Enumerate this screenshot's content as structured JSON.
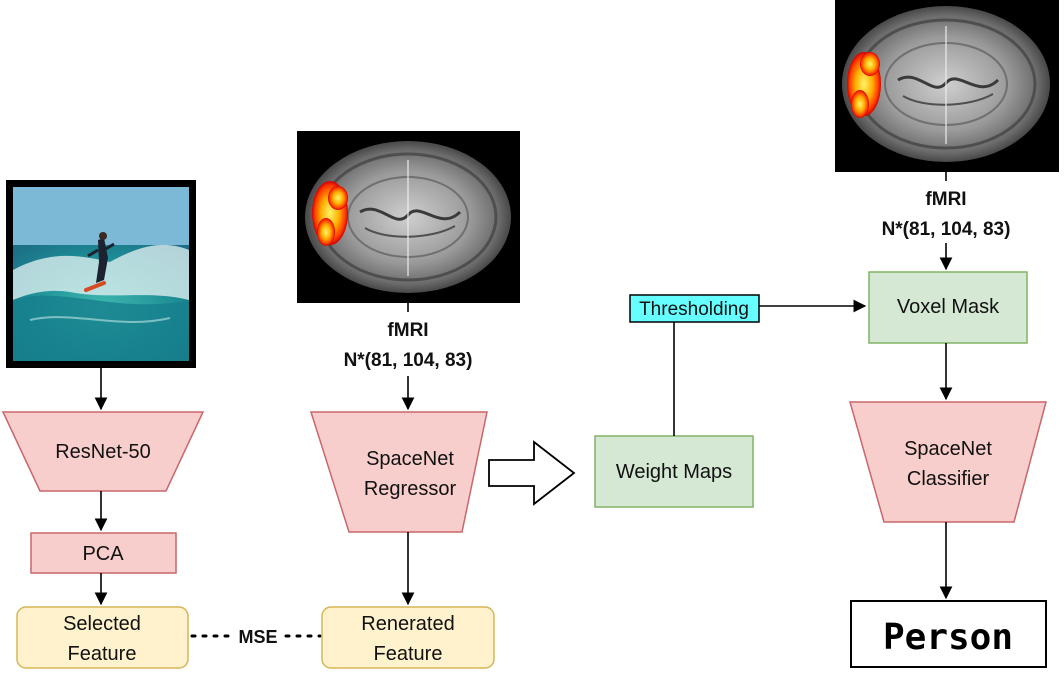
{
  "resnet": {
    "label": "ResNet-50"
  },
  "pca": {
    "label": "PCA"
  },
  "selected_feature": {
    "line1": "Selected",
    "line2": "Feature"
  },
  "mse": {
    "label": "MSE"
  },
  "fmri_left": {
    "title": "fMRI",
    "shape": "N*(81, 104, 83)"
  },
  "regressor": {
    "line1": "SpaceNet",
    "line2": "Regressor"
  },
  "renerated_feature": {
    "line1": "Renerated",
    "line2": "Feature"
  },
  "weight_maps": {
    "label": "Weight Maps"
  },
  "thresholding": {
    "label": "Thresholding"
  },
  "fmri_right": {
    "title": "fMRI",
    "shape": "N*(81, 104, 83)"
  },
  "voxel_mask": {
    "label": "Voxel Mask"
  },
  "classifier": {
    "line1": "SpaceNet",
    "line2": "Classifier"
  },
  "output": {
    "label": "Person"
  },
  "colors": {
    "trapezoid_fill": "#f8cecc",
    "trapezoid_stroke": "#c9676a",
    "green_fill": "#d5e8d4",
    "green_stroke": "#82b366",
    "yellow_fill": "#fff2cc",
    "yellow_stroke": "#d6b656",
    "cyan_fill": "#66ffff"
  }
}
